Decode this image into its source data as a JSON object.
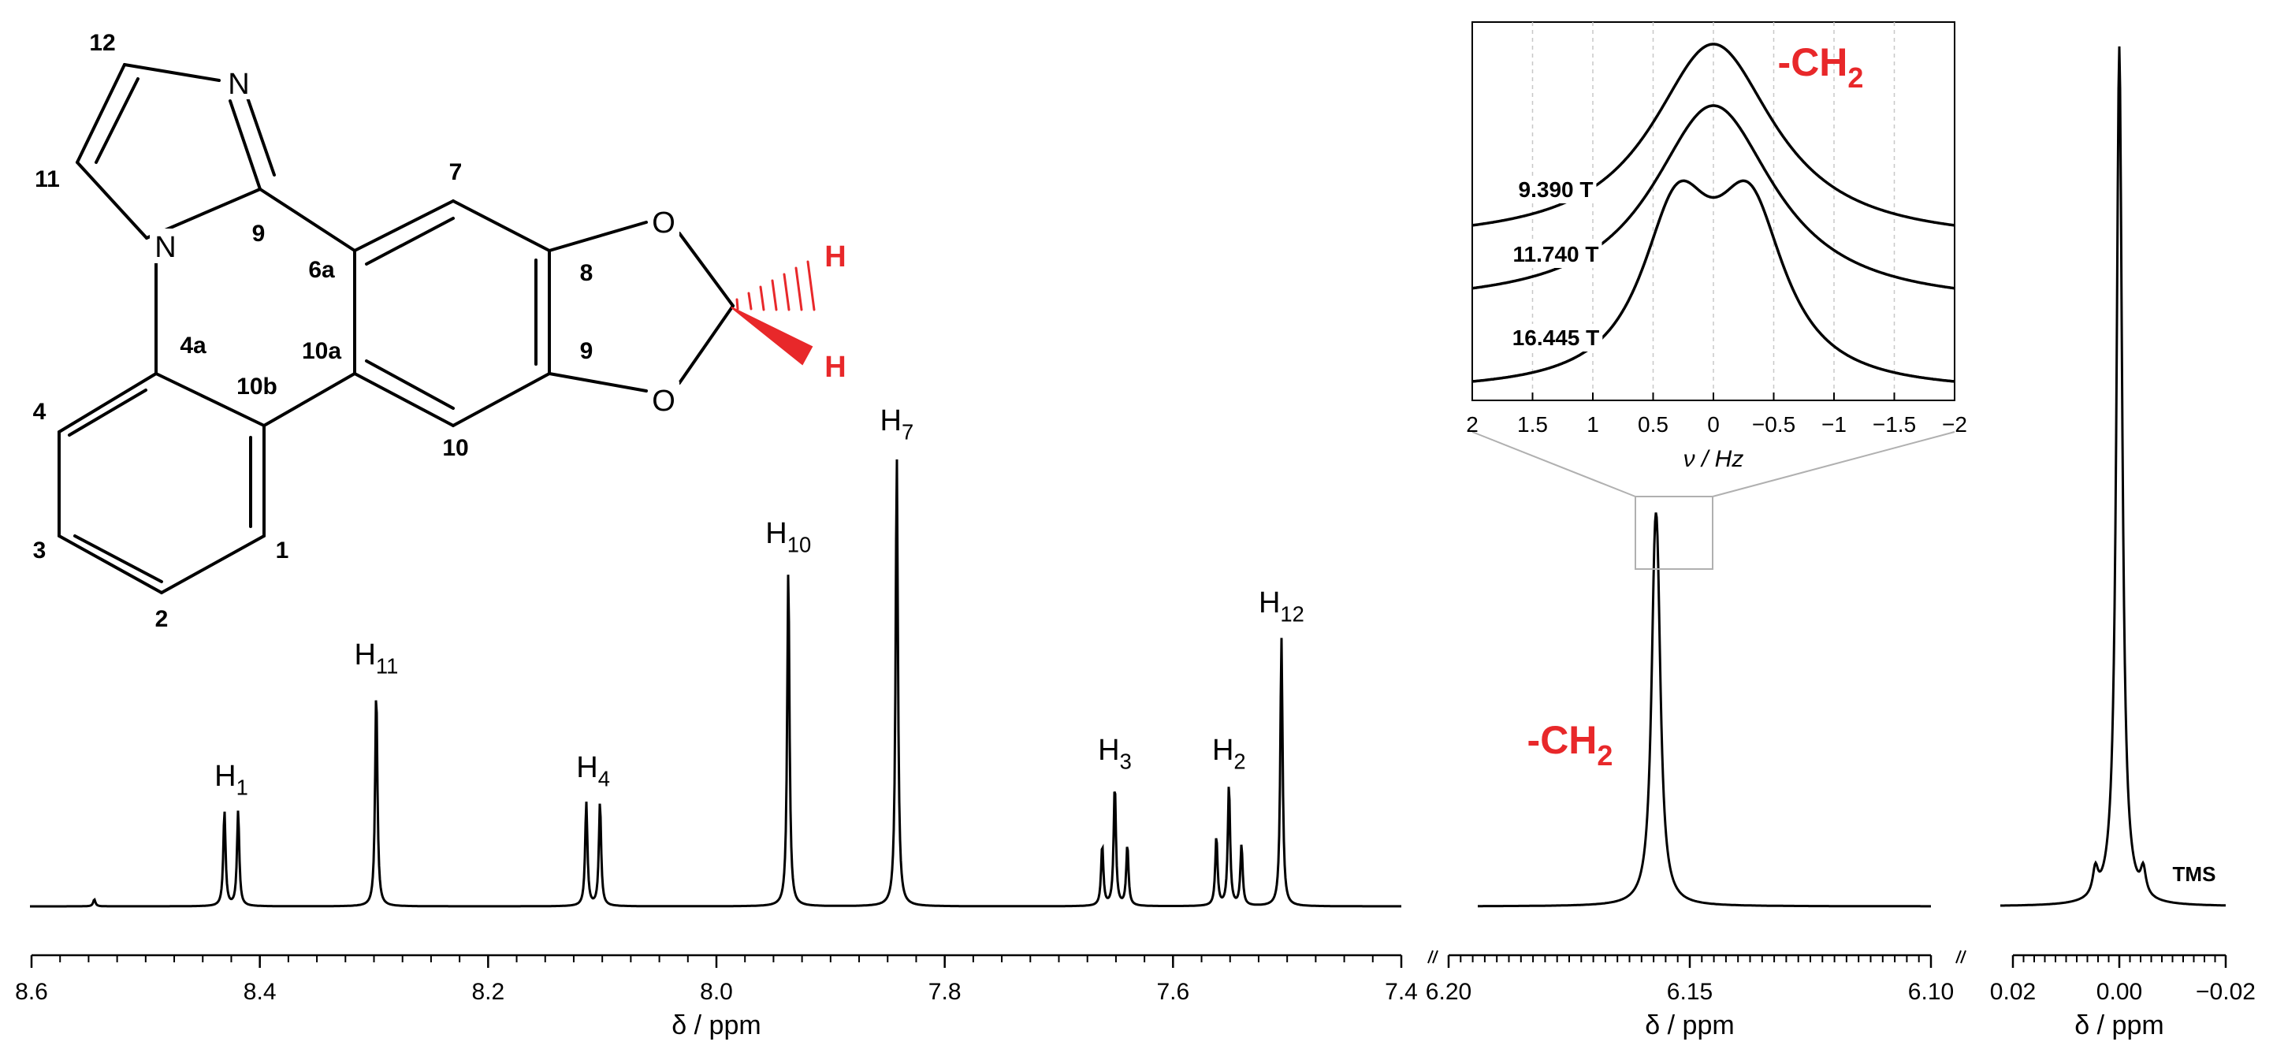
{
  "molecule": {
    "atom_labels": [
      "12",
      "11",
      "N",
      "9",
      "6a",
      "7",
      "8",
      "9",
      "10",
      "10a",
      "10b",
      "4a",
      "4",
      "3",
      "2",
      "1"
    ],
    "atoms": {
      "n_top": "N",
      "n_left": "N",
      "o_top": "O",
      "o_bottom": "O",
      "h_top": "H",
      "h_bottom": "H"
    }
  },
  "colors": {
    "accent": "#e8282a",
    "trace": "#000000",
    "box": "#b0b0b0"
  },
  "chart_data": [
    {
      "type": "line",
      "panel": "aromatic",
      "xlabel": "δ / ppm",
      "x_ticks": [
        "8.6",
        "8.4",
        "8.2",
        "8.0",
        "7.8",
        "7.6",
        "7.4"
      ],
      "xlim": [
        8.6,
        7.4
      ],
      "x_reversed": true,
      "peaks": [
        {
          "label": "H",
          "sub": "1",
          "shift": 8.425,
          "lines": [
            8.431,
            8.419
          ],
          "heights": [
            0.11,
            0.11
          ]
        },
        {
          "label": "H",
          "sub": "11",
          "shift": 8.298,
          "lines": [
            8.298
          ],
          "heights": [
            0.25
          ]
        },
        {
          "label": "H",
          "sub": "4",
          "shift": 8.108,
          "lines": [
            8.114,
            8.102
          ],
          "heights": [
            0.12,
            0.12
          ]
        },
        {
          "label": "H",
          "sub": "10",
          "shift": 7.937,
          "lines": [
            7.937
          ],
          "heights": [
            0.39
          ]
        },
        {
          "label": "H",
          "sub": "7",
          "shift": 7.842,
          "lines": [
            7.842
          ],
          "heights": [
            0.52
          ]
        },
        {
          "label": "H",
          "sub": "3",
          "shift": 7.651,
          "lines": [
            7.662,
            7.651,
            7.64
          ],
          "heights": [
            0.07,
            0.14,
            0.07
          ]
        },
        {
          "label": "H",
          "sub": "2",
          "shift": 7.551,
          "lines": [
            7.562,
            7.551,
            7.54
          ],
          "heights": [
            0.08,
            0.14,
            0.07
          ]
        },
        {
          "label": "H",
          "sub": "12",
          "shift": 7.505,
          "lines": [
            7.505
          ],
          "heights": [
            0.31
          ]
        }
      ]
    },
    {
      "type": "line",
      "panel": "methylene",
      "xlabel": "δ / ppm",
      "x_ticks": [
        "6.20",
        "6.15",
        "6.10"
      ],
      "xlim": [
        6.2,
        6.1
      ],
      "x_reversed": true,
      "peak_label": "-CH",
      "peak_label_sub": "2",
      "peak_shift": 6.157,
      "peak_height": 0.85
    },
    {
      "type": "line",
      "panel": "reference",
      "xlabel": "δ / ppm",
      "x_ticks": [
        "0.02",
        "0.00",
        "−0.02"
      ],
      "xlim": [
        0.02,
        -0.02
      ],
      "x_reversed": true,
      "peak_label": "TMS",
      "peak_shift": 0.0,
      "peak_height": 1.0,
      "satellites": [
        0.0045,
        -0.0045
      ],
      "satellite_height": 0.03
    },
    {
      "type": "line",
      "panel": "inset",
      "title": "-CH",
      "title_sub": "2",
      "xlabel": "ν / Hz",
      "x_ticks": [
        "2",
        "1.5",
        "1",
        "0.5",
        "0",
        "−0.5",
        "−1",
        "−1.5",
        "−2"
      ],
      "xlim": [
        2,
        -2
      ],
      "x_reversed": true,
      "series": [
        {
          "name": "9.390 T",
          "shape": "single",
          "splitting": 0
        },
        {
          "name": "11.740 T",
          "shape": "single",
          "splitting": 0
        },
        {
          "name": "16.445 T",
          "shape": "doublet",
          "splitting": 0.6
        }
      ]
    }
  ]
}
